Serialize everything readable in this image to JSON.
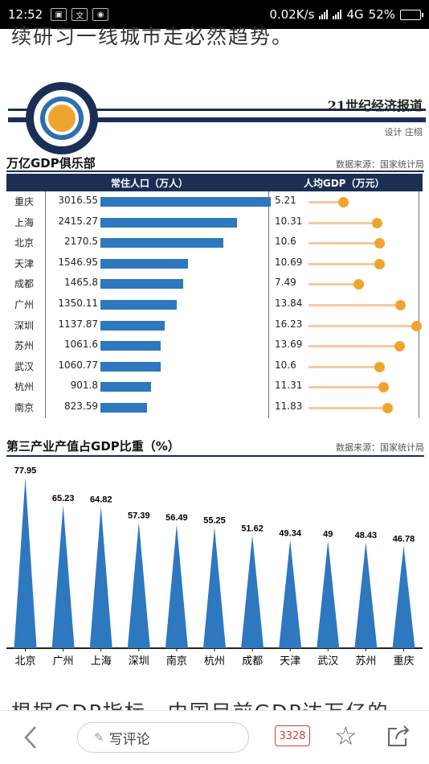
{
  "status_bar": {
    "time": "12:52",
    "net_speed": "0.02K/s",
    "network": "4G",
    "battery": "52%",
    "battery_fraction": 0.52
  },
  "article": {
    "top_text": "续研习一线城市走必然趋势。",
    "bottom_text": "根据GDP指标，中国目前GDP达万亿的"
  },
  "infographic": {
    "brand": "21世纪经济报道",
    "designer": "设计 庄栩",
    "section1_title": "万亿GDP俱乐部",
    "section1_source": "数据来源：国家统计局",
    "pop_header": "常住人口（万人）",
    "gdp_header": "人均GDP（万元）",
    "rows": [
      {
        "city": "重庆",
        "pop": "3016.55",
        "gdp": "5.21"
      },
      {
        "city": "上海",
        "pop": "2415.27",
        "gdp": "10.31"
      },
      {
        "city": "北京",
        "pop": "2170.5",
        "gdp": "10.6"
      },
      {
        "city": "天津",
        "pop": "1546.95",
        "gdp": "10.69"
      },
      {
        "city": "成都",
        "pop": "1465.8",
        "gdp": "7.49"
      },
      {
        "city": "广州",
        "pop": "1350.11",
        "gdp": "13.84"
      },
      {
        "city": "深圳",
        "pop": "1137.87",
        "gdp": "16.23"
      },
      {
        "city": "苏州",
        "pop": "1061.6",
        "gdp": "13.69"
      },
      {
        "city": "武汉",
        "pop": "1060.77",
        "gdp": "10.6"
      },
      {
        "city": "杭州",
        "pop": "901.8",
        "gdp": "11.31"
      },
      {
        "city": "南京",
        "pop": "823.59",
        "gdp": "11.83"
      }
    ],
    "section2_title": "第三产业产值占GDP比重（%）",
    "section2_source": "数据来源：国家统计局",
    "colors": {
      "navy": "#1b2f55",
      "bar_blue": "#2d78bf",
      "orange": "#f0a430",
      "stem": "#f6c9a0"
    }
  },
  "chart_data": {
    "type": "bar",
    "title": "第三产业产值占GDP比重（%）",
    "categories": [
      "北京",
      "广州",
      "上海",
      "深圳",
      "南京",
      "杭州",
      "成都",
      "天津",
      "武汉",
      "苏州",
      "重庆"
    ],
    "values": [
      77.95,
      65.23,
      64.82,
      57.39,
      56.49,
      55.25,
      51.62,
      49.34,
      49,
      48.43,
      46.78
    ],
    "value_labels": [
      "77.95",
      "65.23",
      "64.82",
      "57.39",
      "56.49",
      "55.25",
      "51.62",
      "49.34",
      "49",
      "48.43",
      "46.78"
    ],
    "ylim": [
      0,
      80
    ]
  },
  "bottom_bar": {
    "comment_placeholder": "写评论",
    "comment_count": "3328",
    "icons": [
      "back-icon",
      "pencil-icon",
      "comment-count-icon",
      "star-icon",
      "share-icon"
    ]
  }
}
